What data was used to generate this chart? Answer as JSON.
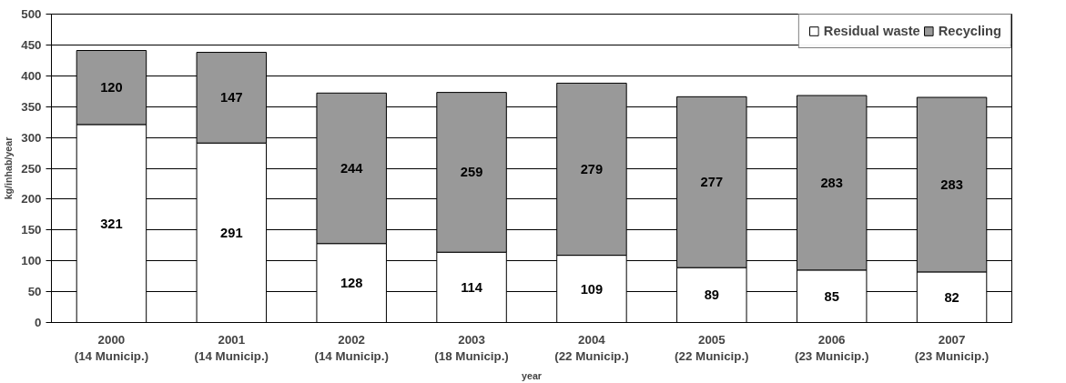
{
  "chart_data": {
    "type": "bar",
    "stacked": true,
    "xlabel": "year",
    "ylabel": "kg/inhab/year",
    "categories": [
      "2000\n(14 Municip.)",
      "2001\n(14 Municip.)",
      "2002\n(14 Municip.)",
      "2003\n(18 Municip.)",
      "2004\n(22 Municip.)",
      "2005\n(22 Municip.)",
      "2006\n(23 Municip.)",
      "2007\n(23 Municip.)"
    ],
    "series": [
      {
        "name": "Residual waste",
        "color": "#ffffff",
        "values": [
          321,
          291,
          128,
          114,
          109,
          89,
          85,
          82
        ]
      },
      {
        "name": "Recycling",
        "color": "#999999",
        "values": [
          120,
          147,
          244,
          259,
          279,
          277,
          283,
          283
        ]
      }
    ],
    "ylim": [
      0,
      500
    ],
    "yticks": [
      0,
      50,
      100,
      150,
      200,
      250,
      300,
      350,
      400,
      450,
      500
    ],
    "grid": "y",
    "legend": "top right",
    "data_labels": true
  }
}
